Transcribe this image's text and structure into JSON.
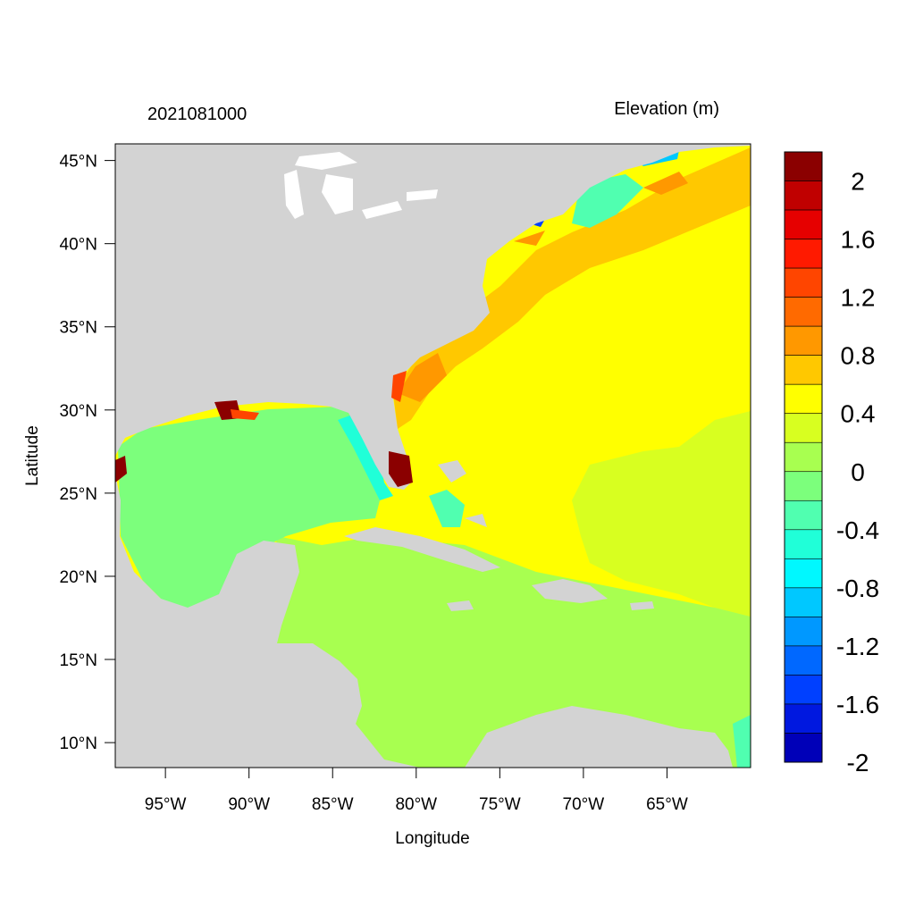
{
  "header": {
    "timestamp": "2021081000",
    "variable_title": "Elevation (m)"
  },
  "axes": {
    "xlabel": "Longitude",
    "ylabel": "Latitude",
    "lon_range": [
      -98,
      -60
    ],
    "lat_range": [
      8.5,
      46
    ],
    "x_ticks": [
      {
        "value": -95,
        "label": "95°W"
      },
      {
        "value": -90,
        "label": "90°W"
      },
      {
        "value": -85,
        "label": "85°W"
      },
      {
        "value": -80,
        "label": "80°W"
      },
      {
        "value": -75,
        "label": "75°W"
      },
      {
        "value": -70,
        "label": "70°W"
      },
      {
        "value": -65,
        "label": "65°W"
      }
    ],
    "y_ticks": [
      {
        "value": 45,
        "label": "45°N"
      },
      {
        "value": 40,
        "label": "40°N"
      },
      {
        "value": 35,
        "label": "35°N"
      },
      {
        "value": 30,
        "label": "30°N"
      },
      {
        "value": 25,
        "label": "25°N"
      },
      {
        "value": 20,
        "label": "20°N"
      },
      {
        "value": 15,
        "label": "15°N"
      },
      {
        "value": 10,
        "label": "10°N"
      }
    ]
  },
  "colorbar": {
    "colors_top_to_bottom": [
      "#8b0000",
      "#c00000",
      "#e60000",
      "#ff1a00",
      "#ff4500",
      "#ff6a00",
      "#ff9800",
      "#ffc800",
      "#ffff00",
      "#d8ff20",
      "#a8ff50",
      "#7cff7c",
      "#50ffb0",
      "#20ffd8",
      "#00f8ff",
      "#00c8ff",
      "#0098ff",
      "#0068ff",
      "#0040ff",
      "#0018e0",
      "#0000b8"
    ],
    "labels": [
      {
        "value": 2,
        "label": "2"
      },
      {
        "value": 1.6,
        "label": "1.6"
      },
      {
        "value": 1.2,
        "label": "1.2"
      },
      {
        "value": 0.8,
        "label": "0.8"
      },
      {
        "value": 0.4,
        "label": "0.4"
      },
      {
        "value": 0,
        "label": "0"
      },
      {
        "value": -0.4,
        "label": "-0.4"
      },
      {
        "value": -0.8,
        "label": "-0.8"
      },
      {
        "value": -1.2,
        "label": "-1.2"
      },
      {
        "value": -1.6,
        "label": "-1.6"
      },
      {
        "value": -2,
        "label": "-2"
      }
    ]
  },
  "map_colors": {
    "land": "#d3d3d3",
    "lakes": "#ffffff",
    "gulf": "#7cff7c",
    "caribbean": "#a8ff50",
    "atlantic_low": "#d8ff20",
    "atlantic_mid": "#ffff00",
    "shelf": "#ffc800",
    "shelf_edge": "#ff9800",
    "surge_high": "#8b0000",
    "surge_mid": "#ff4500",
    "negative_light": "#50ffb0",
    "negative_mid": "#20ffd8",
    "negative_strong": "#00c8ff",
    "negative_extreme": "#0040ff"
  }
}
